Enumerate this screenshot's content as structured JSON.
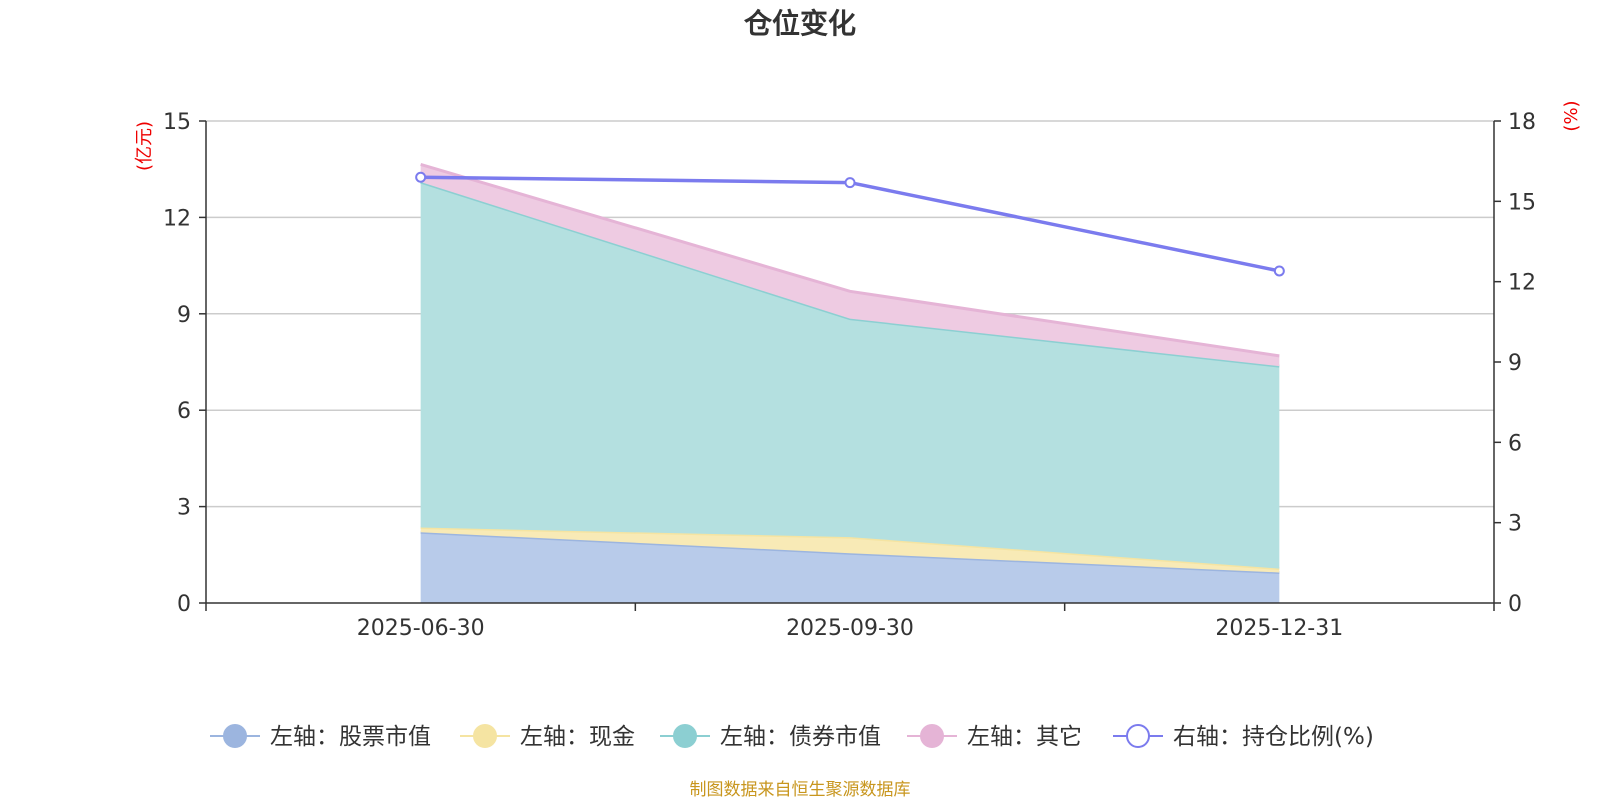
{
  "chart_data": {
    "type": "area",
    "title": "仓位变化",
    "categories": [
      "2025-06-30",
      "2025-09-30",
      "2025-12-31"
    ],
    "left_axis": {
      "unit": "(亿元)",
      "ylim": [
        0,
        15
      ],
      "ticks": [
        "0",
        "3",
        "6",
        "9",
        "12",
        "15"
      ]
    },
    "right_axis": {
      "unit": "(%)",
      "ylim": [
        0,
        18
      ],
      "ticks": [
        "0",
        "3",
        "6",
        "9",
        "12",
        "15",
        "18"
      ]
    },
    "stacked_series": [
      {
        "name": "左轴：股票市值",
        "values": [
          2.2,
          1.55,
          0.95
        ],
        "fill": "#b8cbea",
        "stroke": "#9cb5df",
        "legend": "#9cb5df"
      },
      {
        "name": "左轴：现金",
        "values": [
          0.15,
          0.5,
          0.12
        ],
        "fill": "#f8eab6",
        "stroke": "#f5e4a2",
        "legend": "#f5e4a2"
      },
      {
        "name": "左轴：债券市值",
        "values": [
          10.75,
          6.8,
          6.3
        ],
        "fill": "#b4e0e0",
        "stroke": "#8ccfd2",
        "legend": "#8ccfd2"
      },
      {
        "name": "左轴：其它",
        "values": [
          0.55,
          0.85,
          0.32
        ],
        "fill": "#eecbe2",
        "stroke": "#e5b4d6",
        "legend": "#e5b4d6"
      }
    ],
    "line_series": [
      {
        "name": "右轴：持仓比例(%)",
        "values": [
          15.9,
          15.7,
          12.4
        ],
        "color": "#7b7bee"
      }
    ],
    "grid": true,
    "legend_position": "bottom"
  },
  "source_note": "制图数据来自恒生聚源数据库"
}
